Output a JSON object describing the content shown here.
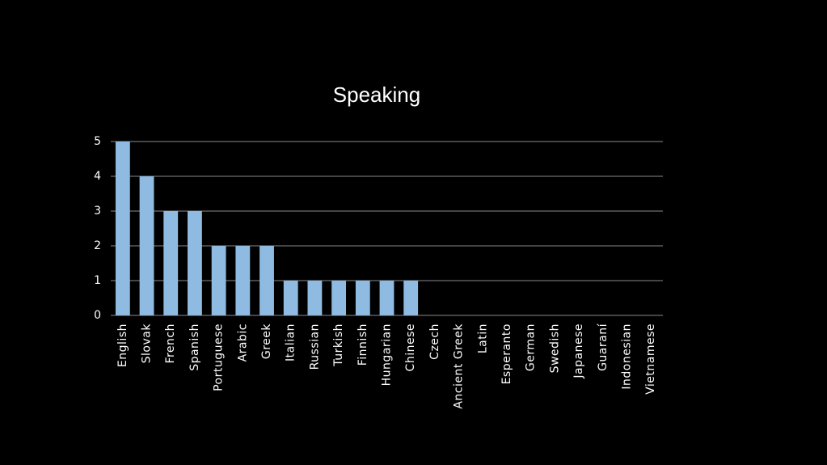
{
  "chart_data": {
    "type": "bar",
    "title": "Speaking",
    "categories": [
      "English",
      "Slovak",
      "French",
      "Spanish",
      "Portuguese",
      "Arabic",
      "Greek",
      "Italian",
      "Russian",
      "Turkish",
      "Finnish",
      "Hungarian",
      "Chinese",
      "Czech",
      "Ancient Greek",
      "Latin",
      "Esperanto",
      "German",
      "Swedish",
      "Japanese",
      "Guaraní",
      "Indonesian",
      "Vietnamese"
    ],
    "values": [
      5,
      4,
      3,
      3,
      2,
      2,
      2,
      1,
      1,
      1,
      1,
      1,
      1,
      0,
      0,
      0,
      0,
      0,
      0,
      0,
      0,
      0,
      0
    ],
    "color": "#8fbbe3",
    "ylim": [
      0,
      5
    ],
    "yticks": [
      0,
      1,
      2,
      3,
      4,
      5
    ],
    "grid": true
  }
}
